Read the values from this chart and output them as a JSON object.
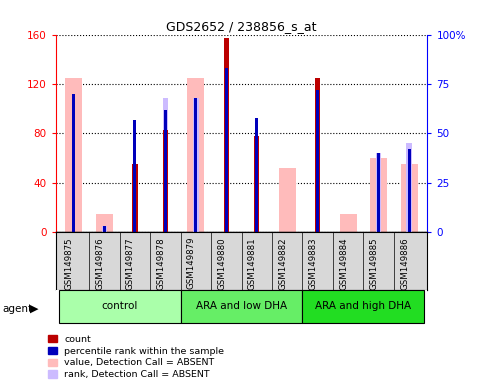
{
  "title": "GDS2652 / 238856_s_at",
  "samples": [
    "GSM149875",
    "GSM149876",
    "GSM149877",
    "GSM149878",
    "GSM149879",
    "GSM149880",
    "GSM149881",
    "GSM149882",
    "GSM149883",
    "GSM149884",
    "GSM149885",
    "GSM149886"
  ],
  "groups": [
    {
      "label": "control",
      "span": [
        0,
        4
      ],
      "color": "#aaffaa"
    },
    {
      "label": "ARA and low DHA",
      "span": [
        4,
        8
      ],
      "color": "#66ee66"
    },
    {
      "label": "ARA and high DHA",
      "span": [
        8,
        12
      ],
      "color": "#22dd22"
    }
  ],
  "count_values": [
    0,
    0,
    55,
    83,
    0,
    157,
    78,
    0,
    125,
    0,
    0,
    0
  ],
  "percentile_values": [
    70,
    3,
    57,
    62,
    68,
    83,
    58,
    0,
    72,
    0,
    40,
    42
  ],
  "absent_value_values": [
    125,
    15,
    0,
    0,
    125,
    0,
    0,
    52,
    0,
    15,
    60,
    55
  ],
  "absent_rank_values": [
    0,
    3,
    0,
    68,
    68,
    0,
    0,
    0,
    0,
    0,
    40,
    45
  ],
  "ylim_left": [
    0,
    160
  ],
  "ylim_right": [
    0,
    100
  ],
  "yticks_left": [
    0,
    40,
    80,
    120,
    160
  ],
  "yticks_right": [
    0,
    25,
    50,
    75,
    100
  ],
  "yticklabels_right": [
    "0",
    "25",
    "50",
    "75",
    "100%"
  ],
  "color_count": "#bb0000",
  "color_percentile": "#0000bb",
  "color_absent_value": "#ffbbbb",
  "color_absent_rank": "#ccbbff",
  "wide_bar_width": 0.55,
  "narrow_bar_width": 0.18,
  "tiny_bar_width": 0.1
}
